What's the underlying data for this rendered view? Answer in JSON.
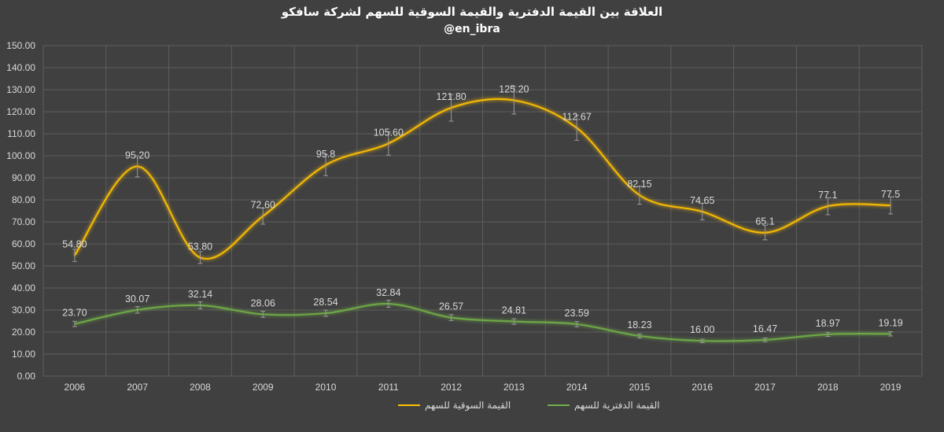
{
  "chart_data": {
    "type": "line",
    "title": "العلاقة بين القيمة الدفترية والقيمة السوقية للسهم لشركة سافكو",
    "subtitle": "@en_ibra",
    "categories": [
      "2006",
      "2007",
      "2008",
      "2009",
      "2010",
      "2011",
      "2012",
      "2013",
      "2014",
      "2015",
      "2016",
      "2017",
      "2018",
      "2019"
    ],
    "ylim": [
      0,
      150
    ],
    "yticks": [
      "0.00",
      "10.00",
      "20.00",
      "30.00",
      "40.00",
      "50.00",
      "60.00",
      "70.00",
      "80.00",
      "90.00",
      "100.00",
      "110.00",
      "120.00",
      "130.00",
      "140.00",
      "150.00"
    ],
    "grid": true,
    "legend_position": "bottom",
    "series": [
      {
        "name": "القيمة السوقية للسهم",
        "color": "#ffc000",
        "values": [
          54.8,
          95.2,
          53.8,
          72.6,
          95.8,
          105.6,
          121.8,
          125.2,
          112.67,
          82.15,
          74.65,
          65.1,
          77.1,
          77.5
        ],
        "labels": [
          "54.80",
          "95.20",
          "53.80",
          "72.60",
          "95.8",
          "105.60",
          "121.80",
          "125.20",
          "112.67",
          "82.15",
          "74.65",
          "65.1",
          "77.1",
          "77.5"
        ],
        "error_bars": true
      },
      {
        "name": "القيمة الدفترية للسهم",
        "color": "#70ad47",
        "values": [
          23.7,
          30.07,
          32.14,
          28.06,
          28.54,
          32.84,
          26.57,
          24.81,
          23.59,
          18.23,
          16.0,
          16.47,
          18.97,
          19.19
        ],
        "labels": [
          "23.70",
          "30.07",
          "32.14",
          "28.06",
          "28.54",
          "32.84",
          "26.57",
          "24.81",
          "23.59",
          "18.23",
          "16.00",
          "16.47",
          "18.97",
          "19.19"
        ],
        "error_bars": true
      }
    ]
  }
}
